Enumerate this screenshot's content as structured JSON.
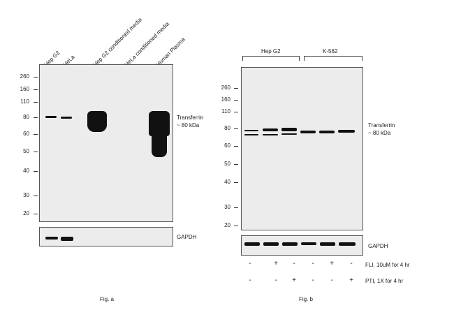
{
  "fig_a": {
    "lanes": [
      "Hep G2",
      "HeLa",
      "Hep G2 conditioned media",
      "HeLa conditioned media",
      "Human Plasma"
    ],
    "mw": [
      "260",
      "160",
      "110",
      "80",
      "60",
      "50",
      "40",
      "30",
      "20"
    ],
    "target_label": "Transferrin",
    "target_size": "~ 80 kDa",
    "loading_label": "GAPDH",
    "caption": "Fig. a"
  },
  "fig_b": {
    "groups": [
      "Hep G2",
      "K-562"
    ],
    "mw": [
      "260",
      "160",
      "110",
      "80",
      "60",
      "50",
      "40",
      "30",
      "20"
    ],
    "target_label": "Transferrin",
    "target_size": "~ 80 kDa",
    "loading_label": "GAPDH",
    "treatments": [
      {
        "label": "FLI, 10uM for 4 hr",
        "signs": [
          "-",
          "+",
          "-",
          "-",
          "+",
          "-"
        ]
      },
      {
        "label": "PTI, 1X for 4 hr",
        "signs": [
          "-",
          "-",
          "+",
          "-",
          "-",
          "+"
        ]
      }
    ],
    "caption": "Fig. b"
  }
}
